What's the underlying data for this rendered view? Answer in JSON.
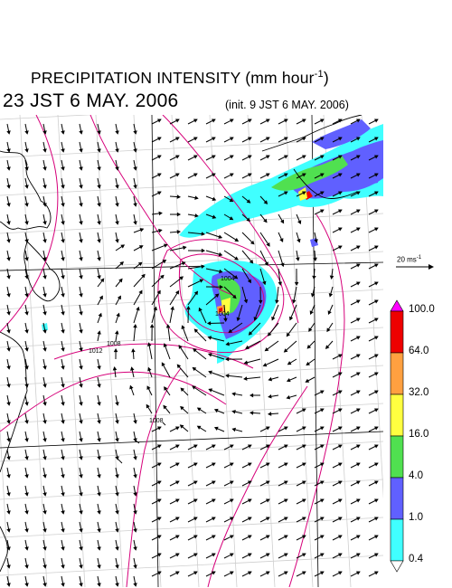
{
  "title": {
    "main": "PRECIPITATION INTENSITY (mm hour",
    "exponent": "-1",
    "close": ")"
  },
  "valid_time": "23 JST 6 MAY. 2006",
  "init_time": "(init. 9 JST 6 MAY. 2006)",
  "wind_scale": {
    "label": "20 ms",
    "exponent": "-1",
    "speed_ms": 20
  },
  "colorbar": {
    "levels": [
      "100.0",
      "64.0",
      "32.0",
      "16.0",
      "4.0",
      "1.0",
      "0.4"
    ],
    "colors": [
      "#ff00ff",
      "#ee0000",
      "#ffa040",
      "#ffff40",
      "#50e050",
      "#6060ff",
      "#40ffff"
    ],
    "unit": "mm hour-1"
  },
  "map": {
    "land_color": "#ffffff",
    "coastline_color": "#000000",
    "grid_color": "#cfcfcf",
    "isobar_color": "#d6007a",
    "vector_color": "#000000",
    "isobar_labels": [
      "1004",
      "1004",
      "1008",
      "1012",
      "1008"
    ]
  }
}
